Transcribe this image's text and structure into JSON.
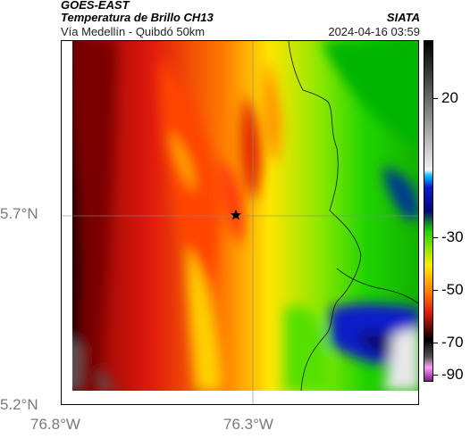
{
  "header": {
    "satellite": "GOES-EAST",
    "product": "Temperatura de Brillo CH13",
    "region": "Vía Medellín - Quibdó 50km",
    "org": "SIATA",
    "timestamp": "2024-04-16 03:59"
  },
  "map": {
    "lat_ticks": [
      "5.7°N",
      "5.2°N"
    ],
    "lon_ticks": [
      "76.8°W",
      "76.3°W"
    ],
    "gridlines": true,
    "marker_icon": "star-icon"
  },
  "colorbar": {
    "ticks": [
      "20",
      "-30",
      "-50",
      "-70",
      "-90"
    ]
  },
  "colors": {
    "red": "#dd1a0c",
    "orange": "#ff6a00",
    "yellow": "#ffee00",
    "green": "#22dd00",
    "blue": "#0a1ec8",
    "black": "#000000"
  }
}
